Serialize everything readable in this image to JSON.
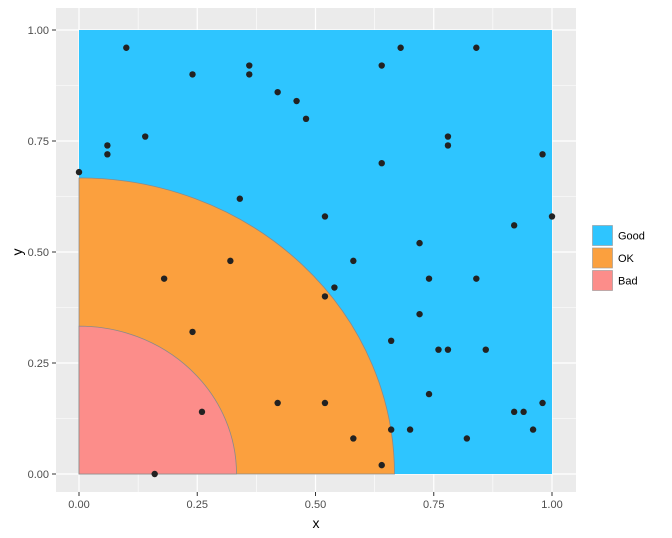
{
  "chart_data": {
    "type": "scatter",
    "title": "",
    "xlabel": "x",
    "ylabel": "y",
    "xlim": [
      0,
      1
    ],
    "ylim": [
      0,
      1
    ],
    "grid": true,
    "legend_position": "right",
    "x_ticks": [
      {
        "value": 0,
        "label": "0.00"
      },
      {
        "value": 0.25,
        "label": "0.25"
      },
      {
        "value": 0.5,
        "label": "0.50"
      },
      {
        "value": 0.75,
        "label": "0.75"
      },
      {
        "value": 1,
        "label": "1.00"
      }
    ],
    "y_ticks": [
      {
        "value": 0,
        "label": "0.00"
      },
      {
        "value": 0.25,
        "label": "0.25"
      },
      {
        "value": 0.5,
        "label": "0.50"
      },
      {
        "value": 0.75,
        "label": "0.75"
      },
      {
        "value": 1,
        "label": "1.00"
      }
    ],
    "regions": [
      {
        "name": "Good",
        "shape": "square",
        "size": 1,
        "color": "#2EC5FF"
      },
      {
        "name": "OK",
        "shape": "quarter-circle",
        "radius": 0.667,
        "color": "#FBA03E"
      },
      {
        "name": "Bad",
        "shape": "quarter-circle",
        "radius": 0.333,
        "color": "#FC8D8A"
      }
    ],
    "legend": [
      {
        "label": "Good",
        "color": "#2EC5FF"
      },
      {
        "label": "OK",
        "color": "#FBA03E"
      },
      {
        "label": "Bad",
        "color": "#FC8D8A"
      }
    ],
    "points": [
      [
        0.0,
        0.68
      ],
      [
        0.06,
        0.74
      ],
      [
        0.06,
        0.72
      ],
      [
        0.1,
        0.96
      ],
      [
        0.14,
        0.76
      ],
      [
        0.16,
        0.0
      ],
      [
        0.18,
        0.44
      ],
      [
        0.24,
        0.9
      ],
      [
        0.24,
        0.32
      ],
      [
        0.26,
        0.14
      ],
      [
        0.32,
        0.48
      ],
      [
        0.34,
        0.62
      ],
      [
        0.36,
        0.92
      ],
      [
        0.36,
        0.9
      ],
      [
        0.42,
        0.86
      ],
      [
        0.42,
        0.16
      ],
      [
        0.46,
        0.84
      ],
      [
        0.48,
        0.8
      ],
      [
        0.52,
        0.58
      ],
      [
        0.52,
        0.4
      ],
      [
        0.52,
        0.16
      ],
      [
        0.54,
        0.42
      ],
      [
        0.58,
        0.48
      ],
      [
        0.58,
        0.08
      ],
      [
        0.64,
        0.92
      ],
      [
        0.64,
        0.7
      ],
      [
        0.64,
        0.02
      ],
      [
        0.66,
        0.3
      ],
      [
        0.66,
        0.1
      ],
      [
        0.68,
        0.96
      ],
      [
        0.7,
        0.1
      ],
      [
        0.72,
        0.52
      ],
      [
        0.72,
        0.36
      ],
      [
        0.74,
        0.44
      ],
      [
        0.74,
        0.18
      ],
      [
        0.76,
        0.28
      ],
      [
        0.78,
        0.76
      ],
      [
        0.78,
        0.74
      ],
      [
        0.78,
        0.28
      ],
      [
        0.82,
        0.08
      ],
      [
        0.84,
        0.96
      ],
      [
        0.84,
        0.44
      ],
      [
        0.86,
        0.28
      ],
      [
        0.92,
        0.56
      ],
      [
        0.92,
        0.14
      ],
      [
        0.94,
        0.14
      ],
      [
        0.96,
        0.1
      ],
      [
        0.98,
        0.72
      ],
      [
        0.98,
        0.16
      ],
      [
        1.0,
        0.58
      ]
    ],
    "point_color": "#222222",
    "panel_background": "#EBEBEB",
    "grid_color": "#FFFFFF"
  }
}
